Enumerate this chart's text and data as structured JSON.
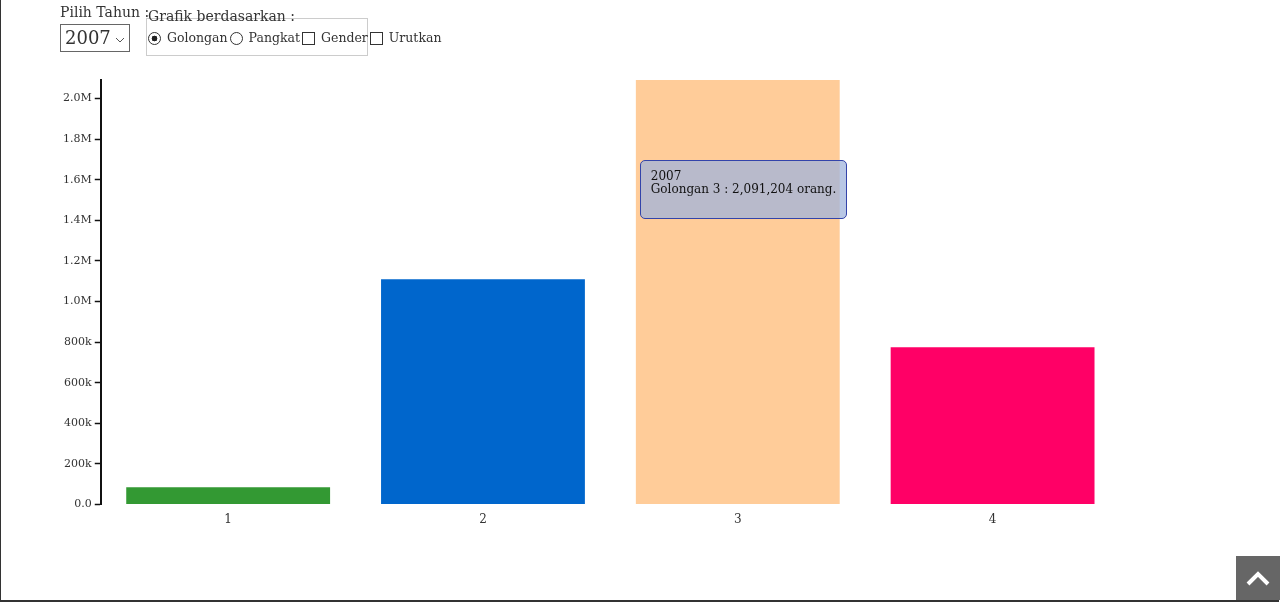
{
  "chart_data": {
    "type": "bar",
    "categories": [
      "1",
      "2",
      "3",
      "4"
    ],
    "values": [
      86000,
      1110000,
      2091204,
      775000
    ],
    "colors": [
      "#339933",
      "#0066cc",
      "#ffcc99",
      "#ff0066"
    ],
    "ylim": [
      0,
      2091204
    ],
    "yticks": [
      {
        "value": 0,
        "label": "0.0"
      },
      {
        "value": 200000,
        "label": "200k"
      },
      {
        "value": 400000,
        "label": "400k"
      },
      {
        "value": 600000,
        "label": "600k"
      },
      {
        "value": 800000,
        "label": "800k"
      },
      {
        "value": 1000000,
        "label": "1.0M"
      },
      {
        "value": 1200000,
        "label": "1.2M"
      },
      {
        "value": 1400000,
        "label": "1.4M"
      },
      {
        "value": 1600000,
        "label": "1.6M"
      },
      {
        "value": 1800000,
        "label": "1.8M"
      },
      {
        "value": 2000000,
        "label": "2.0M"
      }
    ],
    "grid": false,
    "annotations": [
      "Pilih Tahun :",
      "2007",
      "Grafik berdasarkan :",
      "Golongan",
      "Pangkat",
      "Gender",
      "Urutkan",
      "2007\nGolongan 3 : 2,091,204 orang."
    ]
  }
}
